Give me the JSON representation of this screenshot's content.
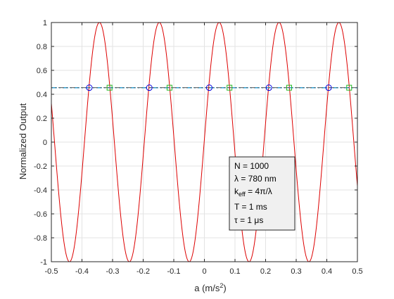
{
  "chart_data": {
    "type": "line",
    "xlabel": "a (m/s",
    "xlabel_sup": "2",
    "xlabel_close": ")",
    "ylabel": "Normalized Output",
    "xlim": [
      -0.5,
      0.5
    ],
    "ylim": [
      -1,
      1
    ],
    "x_ticks": [
      -0.5,
      -0.4,
      -0.3,
      -0.2,
      -0.1,
      0,
      0.1,
      0.2,
      0.3,
      0.4,
      0.5
    ],
    "y_ticks": [
      -1,
      -0.8,
      -0.6,
      -0.4,
      -0.2,
      0,
      0.2,
      0.4,
      0.6,
      0.8,
      1
    ],
    "x_tick_labels": [
      "-0.5",
      "-0.4",
      "-0.3",
      "-0.2",
      "-0.1",
      "0",
      "0.1",
      "0.2",
      "0.3",
      "0.4",
      "0.5"
    ],
    "y_tick_labels": [
      "-1",
      "-0.8",
      "-0.6",
      "-0.4",
      "-0.2",
      "0",
      "0.2",
      "0.4",
      "0.6",
      "0.8",
      "1"
    ],
    "grid": true,
    "series": [
      {
        "kind": "curve",
        "color": "#dd0000",
        "function": "cos",
        "period": 0.1956,
        "peak_x": -0.343
      },
      {
        "kind": "hline",
        "y": 0.455,
        "color_a": "#1a9ad6",
        "color_b": "#555555",
        "style": "dash-dot"
      },
      {
        "kind": "markers",
        "marker": "circle",
        "color": "#0000dd",
        "x": [
          -0.376,
          -0.18,
          0.016,
          0.211,
          0.406
        ],
        "y": [
          0.455,
          0.455,
          0.455,
          0.455,
          0.455
        ]
      },
      {
        "kind": "markers",
        "marker": "square",
        "color": "#22bb22",
        "x": [
          -0.31,
          -0.114,
          0.082,
          0.277,
          0.473
        ],
        "y": [
          0.455,
          0.455,
          0.455,
          0.455,
          0.455
        ]
      }
    ],
    "annotation": {
      "lines": [
        {
          "id": "N",
          "main": "N = 1000"
        },
        {
          "id": "lambda",
          "main": "λ = 780 nm"
        },
        {
          "id": "keff",
          "main": "k",
          "sub": "eff",
          "rest": " = 4π/λ"
        },
        {
          "id": "T",
          "main": "T = 1 ms"
        },
        {
          "id": "tau",
          "main": "τ = 1 μs"
        }
      ]
    }
  }
}
